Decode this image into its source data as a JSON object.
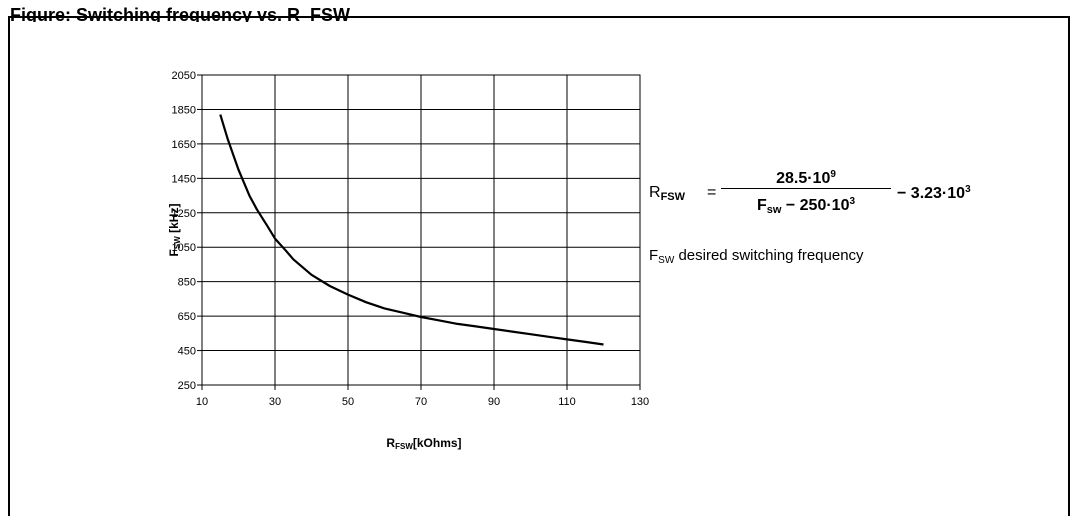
{
  "figure": {
    "heading": "Figure: Switching frequency vs. R_FSW"
  },
  "formula": {
    "lhs_main": "R",
    "lhs_sub": "FSW",
    "equals": "=",
    "numerator_main": "28.5·10",
    "numerator_exp": "9",
    "denominator_main": "F",
    "denominator_sub": "sw",
    "denominator_rest": " − 250·10",
    "denominator_exp": "3",
    "rest_main": "− 3.23·10",
    "rest_exp": "3"
  },
  "note": {
    "main": "F",
    "sub": "SW",
    "text": " desired switching frequency"
  },
  "chart_data": {
    "type": "line",
    "xlabel_main": "R",
    "xlabel_sub": "FSW",
    "xlabel_unit": "[kOhms]",
    "ylabel_main": "F",
    "ylabel_sub": "SW",
    "ylabel_unit": " [kHz]",
    "xlim": [
      10,
      130
    ],
    "ylim": [
      250,
      2050
    ],
    "x_ticks": [
      10,
      30,
      50,
      70,
      90,
      110,
      130
    ],
    "y_ticks": [
      250,
      450,
      650,
      850,
      1050,
      1250,
      1450,
      1650,
      1850,
      2050
    ],
    "grid": true,
    "series": [
      {
        "x": [
          15,
          17,
          20,
          23,
          25,
          28,
          30,
          33,
          35,
          40,
          45,
          50,
          55,
          60,
          65,
          70,
          75,
          80,
          85,
          90,
          95,
          100,
          105,
          110,
          115,
          120
        ],
        "y": [
          1820,
          1680,
          1500,
          1350,
          1270,
          1170,
          1100,
          1030,
          980,
          890,
          825,
          775,
          730,
          695,
          670,
          645,
          625,
          605,
          590,
          575,
          560,
          545,
          530,
          515,
          500,
          485
        ]
      }
    ]
  }
}
